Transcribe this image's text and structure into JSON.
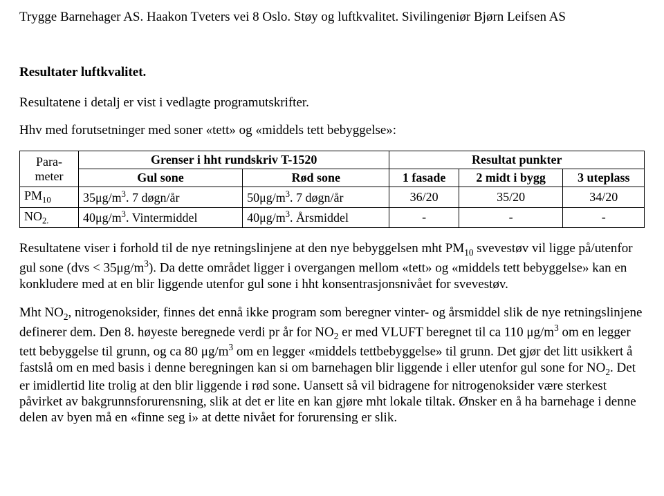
{
  "header": "Trygge Barnehager AS. Haakon Tveters vei 8 Oslo. Støy og luftkvalitet. Sivilingeniør Bjørn Leifsen AS",
  "section_title": "Resultater luftkvalitet.",
  "intro1": "Resultatene i detalj er vist i vedlagte programutskrifter.",
  "intro2": "Hhv med forutsetninger med soner «tett» og «middels tett bebyggelse»:",
  "table": {
    "hdr_param_l1": "Para-",
    "hdr_param_l2": "meter",
    "hdr_grenser": "Grenser i hht rundskriv T-1520",
    "hdr_resultat": "Resultat punkter",
    "hdr_gul": "Gul sone",
    "hdr_rod": "Rød sone",
    "hdr_c1": "1 fasade",
    "hdr_c2": "2 midt i bygg",
    "hdr_c3": "3 uteplass",
    "rows": [
      {
        "param_pre": "PM",
        "param_sub": "10",
        "gul_val": "35μg/m",
        "gul_sup": "3",
        "gul_note": ". 7 døgn/år",
        "rod_val": "50μg/m",
        "rod_sup": "3",
        "rod_note": ". 7 døgn/år",
        "r1": "36/20",
        "r2": "35/20",
        "r3": "34/20"
      },
      {
        "param_pre": "NO",
        "param_sub": "2.",
        "gul_val": "40μg/m",
        "gul_sup": "3",
        "gul_note": ". Vintermiddel",
        "rod_val": "40μg/m",
        "rod_sup": "3",
        "rod_note": ". Årsmiddel",
        "r1": "-",
        "r2": "-",
        "r3": "-"
      }
    ]
  },
  "para1_a": "Resultatene viser i forhold til de nye retningslinjene at den nye bebyggelsen mht PM",
  "para1_sub": "10",
  "para1_b": " svevestøv vil ligge på/utenfor gul sone (dvs < 35μg/m",
  "para1_sup": "3",
  "para1_c": "). Da dette området ligger i overgangen mellom «tett» og «middels tett bebyggelse» kan en konkludere med at en blir liggende utenfor gul sone i hht konsentrasjonsnivået for svevestøv.",
  "para2_a": "Mht NO",
  "para2_sub1": "2",
  "para2_b": ", nitrogenoksider, finnes det ennå ikke program som beregner vinter- og årsmiddel slik de nye retningslinjene definerer dem. Den 8. høyeste beregnede verdi pr år for NO",
  "para2_sub2": "2",
  "para2_c": " er med VLUFT beregnet til ca 110 μg/m",
  "para2_sup1": "3",
  "para2_d": " om en legger tett bebyggelse til grunn, og ca 80 μg/m",
  "para2_sup2": "3",
  "para2_e": " om en legger «middels tettbebyggelse» til grunn. Det gjør det litt usikkert å fastslå om en med basis i denne beregningen kan si om barnehagen blir liggende i eller utenfor gul sone for NO",
  "para2_sub3": "2",
  "para2_f": ". Det er imidlertid lite trolig at den blir liggende i rød sone. Uansett så vil bidragene for nitrogenoksider være sterkest påvirket av bakgrunnsforurensning, slik at det er lite en kan gjøre mht lokale tiltak. Ønsker en å ha barnehage i denne delen av byen må en «finne seg i» at dette nivået for forurensing er slik."
}
